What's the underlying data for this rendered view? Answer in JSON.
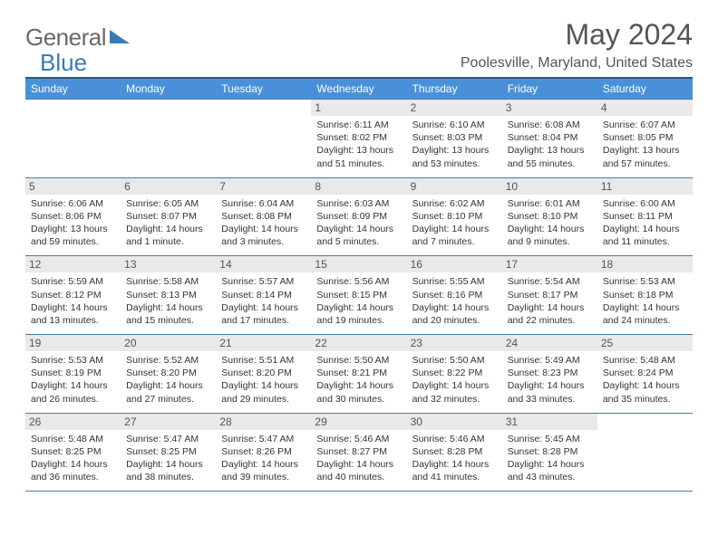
{
  "logo": {
    "general": "General",
    "blue": "Blue"
  },
  "title": "May 2024",
  "location": "Poolesville, Maryland, United States",
  "day_headers": [
    "Sunday",
    "Monday",
    "Tuesday",
    "Wednesday",
    "Thursday",
    "Friday",
    "Saturday"
  ],
  "colors": {
    "header_bg": "#4a90d9",
    "header_border": "#2b5a8a",
    "cell_border": "#4a78a8",
    "daynum_bg": "#e9e9e9",
    "logo_gray": "#6a6a6a",
    "logo_blue": "#3a7ab8"
  },
  "weeks": [
    [
      null,
      null,
      null,
      {
        "n": "1",
        "sr": "Sunrise: 6:11 AM",
        "ss": "Sunset: 8:02 PM",
        "d1": "Daylight: 13 hours",
        "d2": "and 51 minutes."
      },
      {
        "n": "2",
        "sr": "Sunrise: 6:10 AM",
        "ss": "Sunset: 8:03 PM",
        "d1": "Daylight: 13 hours",
        "d2": "and 53 minutes."
      },
      {
        "n": "3",
        "sr": "Sunrise: 6:08 AM",
        "ss": "Sunset: 8:04 PM",
        "d1": "Daylight: 13 hours",
        "d2": "and 55 minutes."
      },
      {
        "n": "4",
        "sr": "Sunrise: 6:07 AM",
        "ss": "Sunset: 8:05 PM",
        "d1": "Daylight: 13 hours",
        "d2": "and 57 minutes."
      }
    ],
    [
      {
        "n": "5",
        "sr": "Sunrise: 6:06 AM",
        "ss": "Sunset: 8:06 PM",
        "d1": "Daylight: 13 hours",
        "d2": "and 59 minutes."
      },
      {
        "n": "6",
        "sr": "Sunrise: 6:05 AM",
        "ss": "Sunset: 8:07 PM",
        "d1": "Daylight: 14 hours",
        "d2": "and 1 minute."
      },
      {
        "n": "7",
        "sr": "Sunrise: 6:04 AM",
        "ss": "Sunset: 8:08 PM",
        "d1": "Daylight: 14 hours",
        "d2": "and 3 minutes."
      },
      {
        "n": "8",
        "sr": "Sunrise: 6:03 AM",
        "ss": "Sunset: 8:09 PM",
        "d1": "Daylight: 14 hours",
        "d2": "and 5 minutes."
      },
      {
        "n": "9",
        "sr": "Sunrise: 6:02 AM",
        "ss": "Sunset: 8:10 PM",
        "d1": "Daylight: 14 hours",
        "d2": "and 7 minutes."
      },
      {
        "n": "10",
        "sr": "Sunrise: 6:01 AM",
        "ss": "Sunset: 8:10 PM",
        "d1": "Daylight: 14 hours",
        "d2": "and 9 minutes."
      },
      {
        "n": "11",
        "sr": "Sunrise: 6:00 AM",
        "ss": "Sunset: 8:11 PM",
        "d1": "Daylight: 14 hours",
        "d2": "and 11 minutes."
      }
    ],
    [
      {
        "n": "12",
        "sr": "Sunrise: 5:59 AM",
        "ss": "Sunset: 8:12 PM",
        "d1": "Daylight: 14 hours",
        "d2": "and 13 minutes."
      },
      {
        "n": "13",
        "sr": "Sunrise: 5:58 AM",
        "ss": "Sunset: 8:13 PM",
        "d1": "Daylight: 14 hours",
        "d2": "and 15 minutes."
      },
      {
        "n": "14",
        "sr": "Sunrise: 5:57 AM",
        "ss": "Sunset: 8:14 PM",
        "d1": "Daylight: 14 hours",
        "d2": "and 17 minutes."
      },
      {
        "n": "15",
        "sr": "Sunrise: 5:56 AM",
        "ss": "Sunset: 8:15 PM",
        "d1": "Daylight: 14 hours",
        "d2": "and 19 minutes."
      },
      {
        "n": "16",
        "sr": "Sunrise: 5:55 AM",
        "ss": "Sunset: 8:16 PM",
        "d1": "Daylight: 14 hours",
        "d2": "and 20 minutes."
      },
      {
        "n": "17",
        "sr": "Sunrise: 5:54 AM",
        "ss": "Sunset: 8:17 PM",
        "d1": "Daylight: 14 hours",
        "d2": "and 22 minutes."
      },
      {
        "n": "18",
        "sr": "Sunrise: 5:53 AM",
        "ss": "Sunset: 8:18 PM",
        "d1": "Daylight: 14 hours",
        "d2": "and 24 minutes."
      }
    ],
    [
      {
        "n": "19",
        "sr": "Sunrise: 5:53 AM",
        "ss": "Sunset: 8:19 PM",
        "d1": "Daylight: 14 hours",
        "d2": "and 26 minutes."
      },
      {
        "n": "20",
        "sr": "Sunrise: 5:52 AM",
        "ss": "Sunset: 8:20 PM",
        "d1": "Daylight: 14 hours",
        "d2": "and 27 minutes."
      },
      {
        "n": "21",
        "sr": "Sunrise: 5:51 AM",
        "ss": "Sunset: 8:20 PM",
        "d1": "Daylight: 14 hours",
        "d2": "and 29 minutes."
      },
      {
        "n": "22",
        "sr": "Sunrise: 5:50 AM",
        "ss": "Sunset: 8:21 PM",
        "d1": "Daylight: 14 hours",
        "d2": "and 30 minutes."
      },
      {
        "n": "23",
        "sr": "Sunrise: 5:50 AM",
        "ss": "Sunset: 8:22 PM",
        "d1": "Daylight: 14 hours",
        "d2": "and 32 minutes."
      },
      {
        "n": "24",
        "sr": "Sunrise: 5:49 AM",
        "ss": "Sunset: 8:23 PM",
        "d1": "Daylight: 14 hours",
        "d2": "and 33 minutes."
      },
      {
        "n": "25",
        "sr": "Sunrise: 5:48 AM",
        "ss": "Sunset: 8:24 PM",
        "d1": "Daylight: 14 hours",
        "d2": "and 35 minutes."
      }
    ],
    [
      {
        "n": "26",
        "sr": "Sunrise: 5:48 AM",
        "ss": "Sunset: 8:25 PM",
        "d1": "Daylight: 14 hours",
        "d2": "and 36 minutes."
      },
      {
        "n": "27",
        "sr": "Sunrise: 5:47 AM",
        "ss": "Sunset: 8:25 PM",
        "d1": "Daylight: 14 hours",
        "d2": "and 38 minutes."
      },
      {
        "n": "28",
        "sr": "Sunrise: 5:47 AM",
        "ss": "Sunset: 8:26 PM",
        "d1": "Daylight: 14 hours",
        "d2": "and 39 minutes."
      },
      {
        "n": "29",
        "sr": "Sunrise: 5:46 AM",
        "ss": "Sunset: 8:27 PM",
        "d1": "Daylight: 14 hours",
        "d2": "and 40 minutes."
      },
      {
        "n": "30",
        "sr": "Sunrise: 5:46 AM",
        "ss": "Sunset: 8:28 PM",
        "d1": "Daylight: 14 hours",
        "d2": "and 41 minutes."
      },
      {
        "n": "31",
        "sr": "Sunrise: 5:45 AM",
        "ss": "Sunset: 8:28 PM",
        "d1": "Daylight: 14 hours",
        "d2": "and 43 minutes."
      },
      null
    ]
  ]
}
